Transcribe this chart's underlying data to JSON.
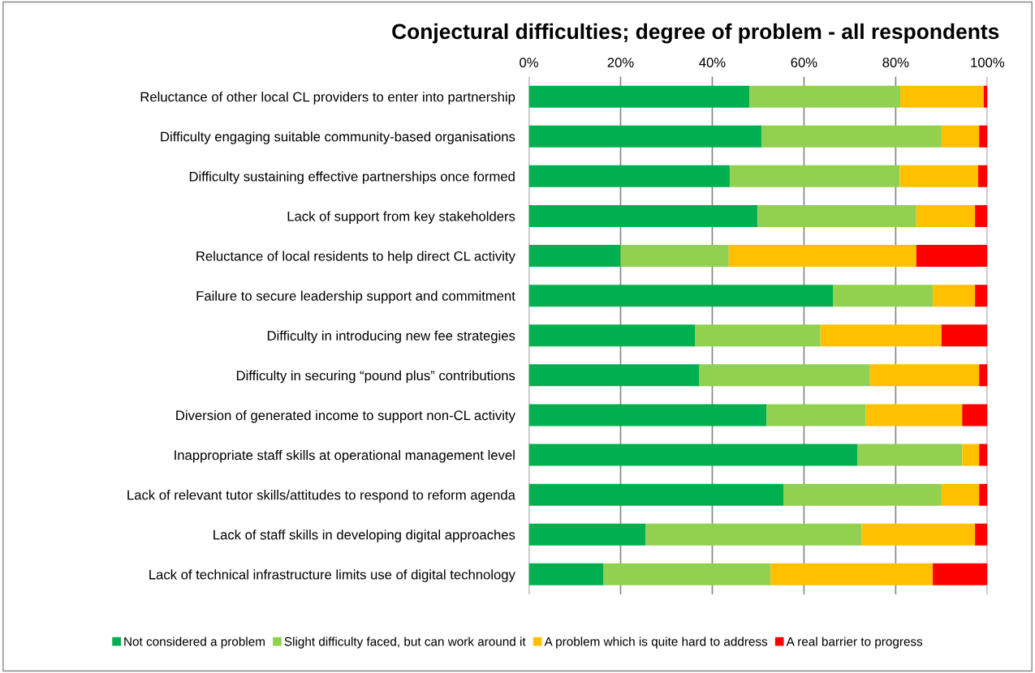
{
  "chart_data": {
    "type": "bar",
    "orientation": "horizontal",
    "stacked": true,
    "title": "Conjectural difficulties; degree of problem - all respondents",
    "categories": [
      "Reluctance of other local CL providers to enter into partnership",
      "Difficulty engaging suitable community-based organisations",
      "Difficulty sustaining effective partnerships once formed",
      "Lack of support from key stakeholders",
      "Reluctance of local residents to help direct CL activity",
      "Failure to secure leadership support and commitment",
      "Difficulty in introducing new fee strategies",
      "Difficulty in securing “pound plus” contributions",
      "Diversion of generated income to support non-CL activity",
      "Inappropriate staff skills at operational management level",
      "Lack of relevant tutor skills/attitudes to respond to reform agenda",
      "Lack of staff skills in developing digital approaches",
      "Lack of technical infrastructure limits use of digital technology"
    ],
    "series": [
      {
        "name": "Not considered a problem",
        "color": "#00b050",
        "values": [
          48.1,
          50.8,
          43.8,
          49.9,
          20.0,
          66.3,
          36.3,
          37.2,
          51.8,
          71.7,
          55.5,
          25.5,
          16.3
        ]
      },
      {
        "name": "Slight difficulty faced, but can work around it",
        "color": "#92d050",
        "values": [
          32.9,
          39.2,
          37.1,
          34.6,
          23.6,
          21.8,
          27.3,
          37.2,
          21.7,
          22.8,
          34.5,
          47.1,
          36.4
        ]
      },
      {
        "name": "A problem which is quite hard to address",
        "color": "#ffc000",
        "values": [
          18.2,
          8.2,
          17.1,
          12.8,
          40.9,
          9.2,
          26.4,
          23.8,
          21.0,
          3.7,
          8.2,
          24.7,
          35.4
        ]
      },
      {
        "name": "A real barrier to progress",
        "color": "#ff0000",
        "values": [
          0.8,
          1.8,
          2.0,
          2.7,
          15.5,
          2.7,
          10.0,
          1.8,
          5.5,
          1.8,
          1.8,
          2.7,
          11.9
        ]
      }
    ],
    "xlim": [
      0,
      100
    ],
    "xticks": [
      {
        "value": 0,
        "label": "0%"
      },
      {
        "value": 20,
        "label": "20%"
      },
      {
        "value": 40,
        "label": "40%"
      },
      {
        "value": 60,
        "label": "60%"
      },
      {
        "value": 80,
        "label": "80%"
      },
      {
        "value": 100,
        "label": "100%"
      }
    ],
    "grid": "x",
    "legend": "bottom"
  }
}
